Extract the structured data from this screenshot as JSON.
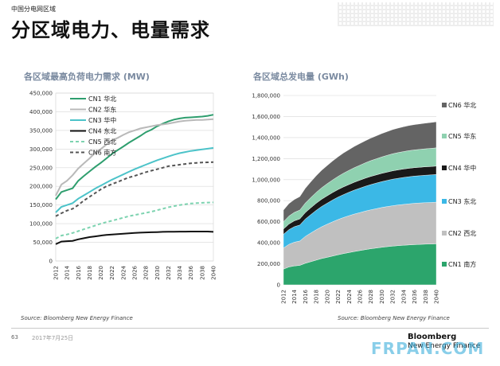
{
  "header": {
    "top_tag": "中国分电网区域",
    "title": "分区域电力、电量需求"
  },
  "footer": {
    "page_number": "63",
    "date": "2017年7月25日",
    "brand_line1": "Bloomberg",
    "brand_line2": "New Energy Finance",
    "watermark": "FRPAN.COM"
  },
  "colors": {
    "CN1_line": "#2e9e6e",
    "CN2_line": "#b9b9b9",
    "CN3_line": "#4cc3c9",
    "CN4_line": "#111111",
    "CN5_line": "#7dd3b0",
    "CN6_line": "#555555",
    "area_CN1": "#2ca56c",
    "area_CN2": "#c0c0c0",
    "area_CN3": "#3bb8e6",
    "area_CN4": "#1a1a1a",
    "area_CN5": "#8fd1b0",
    "area_CN6": "#646464"
  },
  "chart_data": [
    {
      "type": "line",
      "title": "各区域最高负荷电力需求 (MW)",
      "source": "Source: Bloomberg New Energy Finance",
      "x": [
        2012,
        2013,
        2014,
        2015,
        2016,
        2017,
        2018,
        2019,
        2020,
        2021,
        2022,
        2023,
        2024,
        2025,
        2026,
        2027,
        2028,
        2029,
        2030,
        2031,
        2032,
        2033,
        2034,
        2035,
        2036,
        2037,
        2038,
        2039,
        2040
      ],
      "x_ticks": [
        "2012",
        "2014",
        "2016",
        "2018",
        "2020",
        "2022",
        "2024",
        "2026",
        "2028",
        "2030",
        "2032",
        "2034",
        "2036",
        "2038",
        "2040"
      ],
      "y_ticks": [
        "0",
        "50,000",
        "100,000",
        "150,000",
        "200,000",
        "250,000",
        "300,000",
        "350,000",
        "400,000",
        "450,000"
      ],
      "ylim": [
        0,
        450000
      ],
      "grid": true,
      "legend_position": "top-left",
      "series": [
        {
          "name": "CN1 华北",
          "style": "solid",
          "values": [
            165000,
            185000,
            190000,
            195000,
            215000,
            228000,
            240000,
            252000,
            263000,
            275000,
            287000,
            297000,
            307000,
            317000,
            326000,
            335000,
            345000,
            352000,
            361000,
            368000,
            374000,
            379000,
            382000,
            384000,
            385000,
            386000,
            387000,
            389000,
            392000
          ]
        },
        {
          "name": "CN2 华东",
          "style": "solid",
          "values": [
            175000,
            205000,
            215000,
            230000,
            248000,
            262000,
            275000,
            290000,
            300000,
            312000,
            323000,
            330000,
            338000,
            345000,
            350000,
            355000,
            358000,
            361000,
            364000,
            366000,
            368000,
            371000,
            374000,
            376000,
            377000,
            378000,
            378000,
            379000,
            380000
          ]
        },
        {
          "name": "CN3 华中",
          "style": "solid",
          "values": [
            130000,
            145000,
            150000,
            155000,
            167000,
            176000,
            185000,
            194000,
            202000,
            210000,
            218000,
            225000,
            232000,
            239000,
            246000,
            252000,
            258000,
            264000,
            270000,
            275000,
            280000,
            285000,
            289000,
            292000,
            295000,
            297000,
            299000,
            301000,
            303000
          ]
        },
        {
          "name": "CN4 东北",
          "style": "solid",
          "values": [
            45000,
            52000,
            53000,
            54000,
            58000,
            61000,
            64000,
            66000,
            68000,
            70000,
            71000,
            72000,
            73000,
            74000,
            75000,
            76000,
            76500,
            77000,
            77500,
            78000,
            78300,
            78500,
            78700,
            78800,
            78900,
            79000,
            79000,
            79000,
            78000
          ]
        },
        {
          "name": "CN5 西北",
          "style": "dashed",
          "values": [
            60000,
            68000,
            71000,
            75000,
            80000,
            85000,
            90000,
            95000,
            100000,
            104000,
            108000,
            112000,
            116000,
            120000,
            123000,
            126000,
            129000,
            132000,
            136000,
            140000,
            144000,
            147000,
            150000,
            152000,
            154000,
            155000,
            156000,
            156500,
            157000
          ]
        },
        {
          "name": "CN6 南方",
          "style": "dashed",
          "values": [
            120000,
            128000,
            135000,
            140000,
            150000,
            162000,
            172000,
            182000,
            192000,
            200000,
            206000,
            212000,
            218000,
            224000,
            228000,
            233000,
            238000,
            242000,
            246000,
            250000,
            254000,
            256000,
            258000,
            260000,
            262000,
            263000,
            264000,
            264500,
            265000
          ]
        }
      ]
    },
    {
      "type": "area",
      "stacked": true,
      "title": "各区域总发电量 (GWh)",
      "source": "Source: Bloomberg New Energy Finance",
      "x": [
        2012,
        2013,
        2014,
        2015,
        2016,
        2017,
        2018,
        2019,
        2020,
        2021,
        2022,
        2023,
        2024,
        2025,
        2026,
        2027,
        2028,
        2029,
        2030,
        2031,
        2032,
        2033,
        2034,
        2035,
        2036,
        2037,
        2038,
        2039,
        2040
      ],
      "x_ticks": [
        "2012",
        "2014",
        "2016",
        "2018",
        "2020",
        "2022",
        "2024",
        "2026",
        "2028",
        "2030",
        "2032",
        "2034",
        "2036",
        "2038",
        "2040"
      ],
      "y_ticks": [
        "0",
        "200,000",
        "400,000",
        "600,000",
        "800,000",
        "1,000,000",
        "1,200,000",
        "1,400,000",
        "1,600,000",
        "1,800,000"
      ],
      "ylim": [
        0,
        1800000
      ],
      "grid": true,
      "legend_position": "right",
      "series": [
        {
          "name": "CN1 南方",
          "values": [
            150000,
            170000,
            180000,
            185000,
            205000,
            220000,
            235000,
            250000,
            262000,
            274000,
            286000,
            297000,
            307000,
            317000,
            326000,
            335000,
            343000,
            350000,
            357000,
            363000,
            368000,
            373000,
            377000,
            380000,
            383000,
            385000,
            387000,
            388000,
            390000
          ]
        },
        {
          "name": "CN2 西北",
          "values": [
            200000,
            215000,
            225000,
            232000,
            255000,
            272000,
            288000,
            302000,
            314000,
            325000,
            335000,
            343000,
            350000,
            356000,
            361000,
            366000,
            370000,
            374000,
            378000,
            381000,
            384000,
            386000,
            388000,
            390000,
            392000,
            393000,
            394000,
            395000,
            396000
          ]
        },
        {
          "name": "CN3 东北",
          "values": [
            130000,
            140000,
            148000,
            152000,
            165000,
            175000,
            185000,
            193000,
            200000,
            207000,
            213000,
            218000,
            223000,
            228000,
            232000,
            236000,
            240000,
            243000,
            246000,
            249000,
            252000,
            254000,
            256000,
            258000,
            259000,
            260000,
            261000,
            262000,
            263000
          ]
        },
        {
          "name": "CN4 华中",
          "values": [
            50000,
            53000,
            56000,
            58000,
            62000,
            65000,
            67000,
            69000,
            70000,
            71000,
            72000,
            73000,
            74000,
            75000,
            76000,
            77000,
            77500,
            78000,
            78500,
            79000,
            79500,
            80000,
            80000,
            80000,
            80000,
            80000,
            80000,
            80000,
            80000
          ]
        },
        {
          "name": "CN5 华东",
          "values": [
            70000,
            76000,
            80000,
            84000,
            90000,
            97000,
            103000,
            109000,
            115000,
            120000,
            125000,
            130000,
            134000,
            138000,
            142000,
            146000,
            150000,
            153000,
            156000,
            159000,
            162000,
            164000,
            166000,
            168000,
            169000,
            170000,
            171000,
            172000,
            173000
          ]
        },
        {
          "name": "CN6 华北",
          "values": [
            110000,
            118000,
            122000,
            128000,
            140000,
            150000,
            158000,
            166000,
            173000,
            180000,
            186000,
            192000,
            197000,
            202000,
            206000,
            210000,
            214000,
            218000,
            222000,
            226000,
            230000,
            233000,
            236000,
            238000,
            240000,
            242000,
            244000,
            246000,
            248000
          ]
        }
      ]
    }
  ]
}
